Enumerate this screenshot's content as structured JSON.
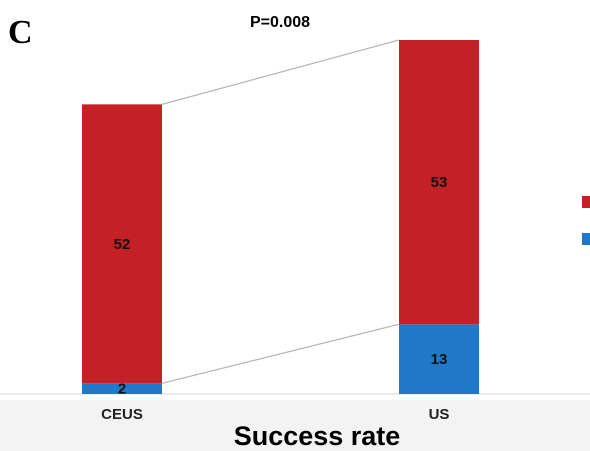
{
  "panel_label": "C",
  "chart_data": {
    "type": "bar",
    "stacked": true,
    "title": "P=0.008",
    "xlabel": "Success rate",
    "ylabel": "",
    "categories": [
      "CEUS",
      "US"
    ],
    "series": [
      {
        "name": "",
        "color": "#c42026",
        "values": [
          52,
          53
        ]
      },
      {
        "name": "",
        "color": "#1f78c8",
        "values": [
          2,
          13
        ]
      }
    ],
    "data_labels": [
      [
        "52",
        "2"
      ],
      [
        "53",
        "13"
      ]
    ],
    "ylim": [
      0,
      66
    ],
    "grid": false,
    "legend": "right",
    "connector_color": "#b5b5b5"
  }
}
